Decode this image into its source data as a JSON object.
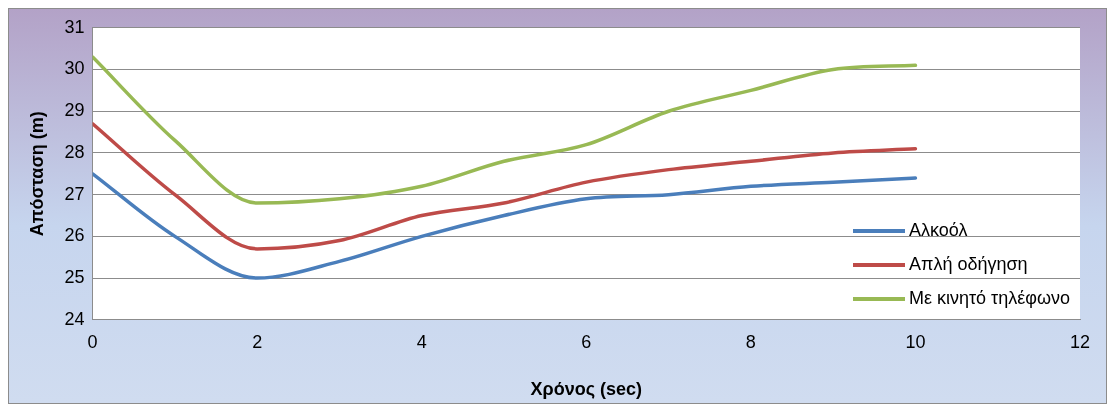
{
  "chart_data": {
    "type": "line",
    "xlabel": "Χρόνος (sec)",
    "ylabel": "Απόσταση (m)",
    "x": [
      0,
      1,
      2,
      3,
      4,
      5,
      6,
      7,
      8,
      9,
      10
    ],
    "series": [
      {
        "name": "Αλκοόλ",
        "color": "#4a7ebb",
        "values": [
          27.5,
          26.0,
          25.0,
          25.4,
          26.0,
          26.5,
          26.9,
          27.0,
          27.2,
          27.3,
          27.4
        ]
      },
      {
        "name": "Απλή οδήγηση",
        "color": "#be4b48",
        "values": [
          28.7,
          27.0,
          25.7,
          25.9,
          26.5,
          26.8,
          27.3,
          27.6,
          27.8,
          28.0,
          28.1
        ]
      },
      {
        "name": "Με κινητό τηλέφωνο",
        "color": "#98b954",
        "values": [
          30.3,
          28.3,
          26.8,
          26.9,
          27.2,
          27.8,
          28.2,
          29.0,
          29.5,
          30.0,
          30.1
        ]
      }
    ],
    "xlim": [
      0,
      12
    ],
    "xticks": [
      0,
      2,
      4,
      6,
      8,
      10,
      12
    ],
    "ylim": [
      24,
      31
    ],
    "yticks": [
      24,
      25,
      26,
      27,
      28,
      29,
      30,
      31
    ],
    "grid": "y",
    "legend": "bottom right",
    "marker": "none",
    "line_style": "solid"
  }
}
